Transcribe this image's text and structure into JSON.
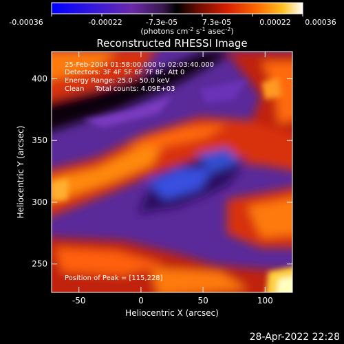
{
  "colorbar": {
    "ticks": [
      "-0.00036",
      "-0.00022",
      "-7.3e-05",
      "7.3e-05",
      "0.00022",
      "0.00036"
    ],
    "unit_parts": [
      "(photons cm",
      "-2",
      " s",
      "-1",
      " asec",
      "-2",
      ")"
    ],
    "colormap": [
      "#0000ff",
      "#3a1ad8",
      "#6a2aa8",
      "#3a1850",
      "#000000",
      "#6a0c00",
      "#d82000",
      "#ff6a00",
      "#ffc020",
      "#ffffff"
    ]
  },
  "chart_data": {
    "type": "heatmap",
    "title": "Reconstructed RHESSI Image",
    "xlabel": "Heliocentric X (arcsec)",
    "ylabel": "Heliocentric Y (arcsec)",
    "xlim": [
      -72,
      122
    ],
    "ylim": [
      227,
      422
    ],
    "xticks": [
      -50,
      0,
      50,
      100
    ],
    "yticks": [
      250,
      300,
      350,
      400
    ],
    "value_range": [
      -0.00036,
      0.00036
    ],
    "peak_position": [
      115,
      228
    ],
    "annotations": [
      "25-Feb-2004 01:58:00.000 to 02:03:40.000",
      "Detectors: 3F 4F 5F 6F 7F 8F, Att 0",
      "Energy Range: 25.0 - 50.0 keV",
      "Clean     Total counts: 4.09E+03"
    ],
    "peak_label": "Position of Peak = [115,228]",
    "grid": false
  },
  "timestamp": "28-Apr-2022 22:28"
}
